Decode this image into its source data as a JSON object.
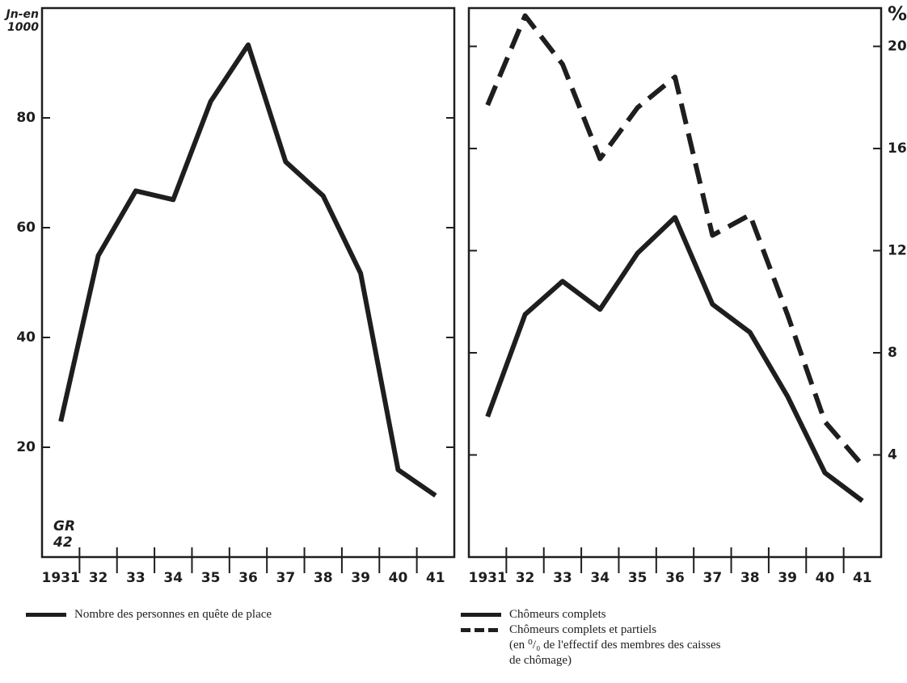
{
  "chart_data": [
    {
      "type": "line",
      "ylabel_lines": [
        "Jn-en",
        "1000"
      ],
      "annotation_lines": [
        "GR",
        "42"
      ],
      "categories": [
        "1931",
        "32",
        "33",
        "34",
        "35",
        "36",
        "37",
        "38",
        "39",
        "40",
        "41"
      ],
      "series": [
        {
          "name": "Nombre des personnes en quête de place",
          "color": "#1e1e1e",
          "dashed": false,
          "values": [
            24.7,
            54.9,
            66.7,
            65.1,
            83,
            93.3,
            72,
            65.8,
            51.7,
            15.9,
            11.2
          ]
        }
      ],
      "ylim": [
        0,
        100
      ],
      "yticks": [
        20,
        40,
        60,
        80
      ],
      "yaxis_side": "left",
      "grid": false
    },
    {
      "type": "line",
      "ylabel_lines": [
        "%"
      ],
      "categories": [
        "1931",
        "32",
        "33",
        "34",
        "35",
        "36",
        "37",
        "38",
        "39",
        "40",
        "41"
      ],
      "series": [
        {
          "name": "Chômeurs complets",
          "color": "#1e1e1e",
          "dashed": false,
          "values": [
            5.5,
            9.5,
            10.8,
            9.7,
            11.9,
            13.3,
            9.9,
            8.8,
            6.3,
            3.3,
            2.2
          ]
        },
        {
          "name": "Chômeurs complets et partiels",
          "color": "#1e1e1e",
          "dashed": true,
          "values": [
            17.7,
            21.2,
            19.3,
            15.6,
            17.6,
            18.8,
            12.6,
            13.4,
            9.5,
            5.3,
            3.6
          ]
        }
      ],
      "legend_note": "(en ⁰/₀ de l'effectif des membres des caisses de chômage)",
      "ylim": [
        0,
        21.5
      ],
      "yticks": [
        4,
        8,
        12,
        16,
        20
      ],
      "yaxis_side": "right",
      "grid": false
    }
  ]
}
